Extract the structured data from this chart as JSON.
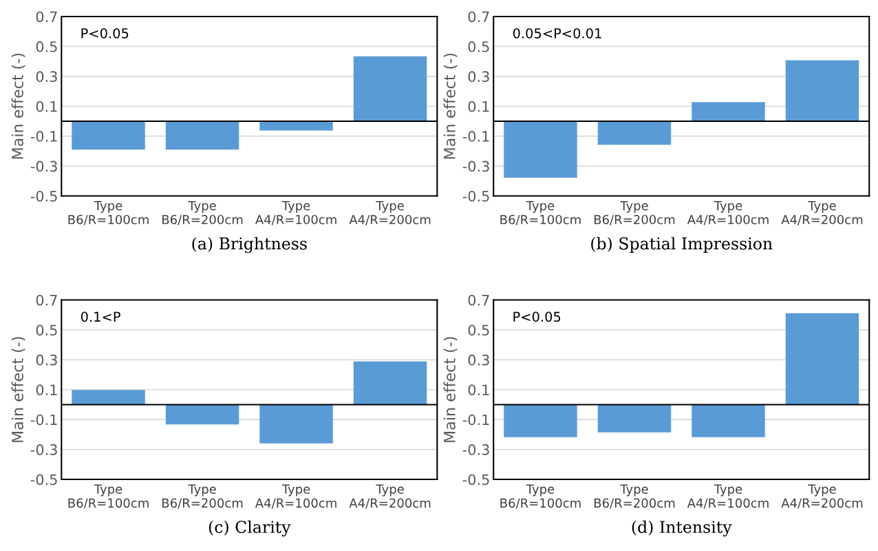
{
  "chart_data": [
    {
      "type": "bar",
      "title": "(a) Brightness",
      "ylabel": "Main effect (-)",
      "categories": [
        "Type\nB6/R=100cm",
        "Type\nB6/R=200cm",
        "Type\nA4/R=100cm",
        "Type\nA4/R=200cm"
      ],
      "values": [
        -0.19,
        -0.19,
        -0.063,
        0.434
      ],
      "color": "#5b9bd5",
      "ylim": [
        -0.5,
        0.7
      ],
      "yticks": [
        -0.5,
        -0.3,
        -0.1,
        0.1,
        0.3,
        0.5,
        0.7
      ],
      "grid": "y",
      "annotations": [
        "P<0.05"
      ]
    },
    {
      "type": "bar",
      "title": "(b) Spatial Impression",
      "ylabel": "Main effect (-)",
      "categories": [
        "Type\nB6/R=100cm",
        "Type\nB6/R=200cm",
        "Type\nA4/R=100cm",
        "Type\nA4/R=200cm"
      ],
      "values": [
        -0.378,
        -0.158,
        0.128,
        0.408
      ],
      "color": "#5b9bd5",
      "ylim": [
        -0.5,
        0.7
      ],
      "yticks": [
        -0.5,
        -0.3,
        -0.1,
        0.1,
        0.3,
        0.5,
        0.7
      ],
      "grid": "y",
      "annotations": [
        "0.05<P<0.01"
      ]
    },
    {
      "type": "bar",
      "title": "(c) Clarity",
      "ylabel": "Main effect (-)",
      "categories": [
        "Type\nB6/R=100cm",
        "Type\nB6/R=200cm",
        "Type\nA4/R=100cm",
        "Type\nA4/R=200cm"
      ],
      "values": [
        0.098,
        -0.133,
        -0.259,
        0.289
      ],
      "color": "#5b9bd5",
      "ylim": [
        -0.5,
        0.7
      ],
      "yticks": [
        -0.5,
        -0.3,
        -0.1,
        0.1,
        0.3,
        0.5,
        0.7
      ],
      "grid": "y",
      "annotations": [
        "0.1<P"
      ]
    },
    {
      "type": "bar",
      "title": "(d) Intensity",
      "ylabel": "Main effect (-)",
      "categories": [
        "Type\nB6/R=100cm",
        "Type\nB6/R=200cm",
        "Type\nA4/R=100cm",
        "Type\nA4/R=200cm"
      ],
      "values": [
        -0.218,
        -0.185,
        -0.218,
        0.612
      ],
      "color": "#5b9bd5",
      "ylim": [
        -0.5,
        0.7
      ],
      "yticks": [
        -0.5,
        -0.3,
        -0.1,
        0.1,
        0.3,
        0.5,
        0.7
      ],
      "grid": "y",
      "annotations": [
        "P<0.05"
      ]
    }
  ]
}
